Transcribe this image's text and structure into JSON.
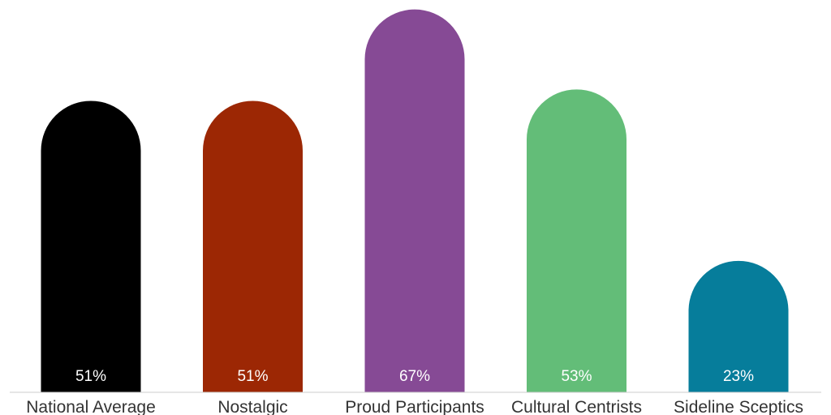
{
  "chart_data": {
    "type": "bar",
    "categories": [
      "National Average",
      "Nostalgic",
      "Proud Participants",
      "Cultural Centrists",
      "Sideline Sceptics"
    ],
    "values": [
      51,
      51,
      67,
      53,
      23
    ],
    "value_labels": [
      "51%",
      "51%",
      "67%",
      "53%",
      "23%"
    ],
    "colors": [
      "#000000",
      "#9c2704",
      "#864a95",
      "#63bd78",
      "#067d9b"
    ],
    "title": "",
    "xlabel": "",
    "ylabel": "",
    "ylim": [
      0,
      70
    ],
    "grid": false,
    "bar_shape": "rounded-top"
  }
}
